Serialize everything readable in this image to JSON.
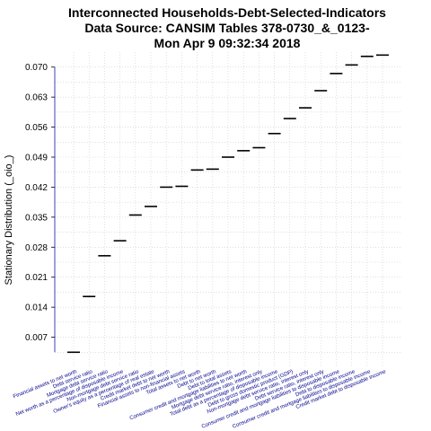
{
  "chart_data": {
    "type": "scatter",
    "title": [
      "Interconnected Households-Debt-Selected-Indicators",
      "Data Source: CANSIM Tables 378-0730_&_0123-",
      "Mon Apr  9 09:32:34 2018"
    ],
    "ylabel": "Stationary Distribution (_oio_)",
    "xlabel": "",
    "ylim": [
      0.0,
      0.0735
    ],
    "yticks": [
      0.007,
      0.014,
      0.021,
      0.028,
      0.035,
      0.042,
      0.049,
      0.056,
      0.063,
      0.07
    ],
    "ytick_labels": [
      "0.007",
      "0.014",
      "0.021",
      "0.028",
      "0.035",
      "0.042",
      "0.049",
      "0.056",
      "0.063",
      "0.070"
    ],
    "grid": true,
    "colors": {
      "marks": "#000000",
      "axis": "#4040c0",
      "xticks": "#00008b",
      "grid": "#cccccc"
    },
    "categories": [
      "Financial assets to net worth",
      "Debt service ratio",
      "Mortgage debt service ratio",
      "Net worth as a percentage of disposable income",
      "Non-mortgage debt service ratio",
      "Owner's equity as a percentage of real estate",
      "Credit market debt to net worth",
      "Financial assets to non-financial assets",
      "Total assets to net worth",
      "Debt to net worth",
      "Debt to total assets",
      "Consumer credit and mortgage liabilities to net worth",
      "Mortgage debt service ratio, interest only",
      "Total debt as a percentage of disposable income",
      "Debt to gross domestic product (GDP)",
      "Non-mortgage debt service ratio, interest only",
      "Debt service ratio, interest only",
      "Consumer credit and mortgage liabilities to disposable income",
      "Debt to disposable income",
      "Consumer credit and mortgage liabilities to disposable income",
      "Credit market debt to disposable income"
    ],
    "values": [
      0.0035,
      0.0165,
      0.026,
      0.0295,
      0.0355,
      0.0375,
      0.042,
      0.0422,
      0.046,
      0.0462,
      0.049,
      0.0505,
      0.0512,
      0.0545,
      0.058,
      0.0605,
      0.0645,
      0.0685,
      0.0705,
      0.0725,
      0.0728
    ]
  }
}
